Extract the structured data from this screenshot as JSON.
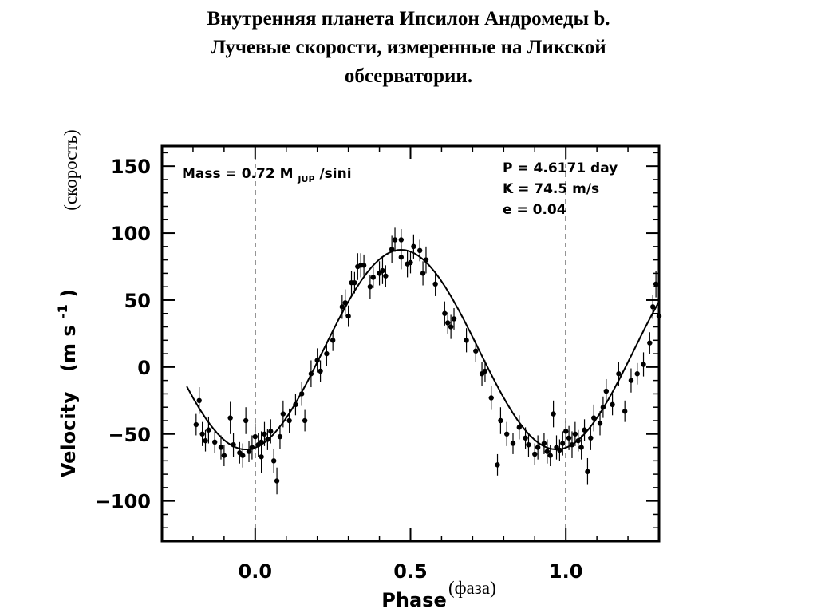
{
  "title": {
    "line1": "Внутренняя планета Ипсилон Андромеды b.",
    "line2": "Лучевые скорости, измеренные на Ликской",
    "line3": "обсерватории."
  },
  "ru_labels": {
    "ylabel": "(скорость)",
    "xlabel": "(фаза)"
  },
  "chart_data": {
    "type": "scatter",
    "xlabel": "Phase",
    "ylabel": "Velocity",
    "ylabel_units": "(m s",
    "ylabel_units_sup": "-1",
    "ylabel_units_close": ")",
    "xlim": [
      -0.3,
      1.3
    ],
    "ylim": [
      -130,
      165
    ],
    "x_ticks": [
      0.0,
      0.5,
      1.0
    ],
    "x_tick_labels": [
      "0.0",
      "0.5",
      "1.0"
    ],
    "y_ticks": [
      150,
      100,
      50,
      0,
      -50,
      -100
    ],
    "y_tick_labels": [
      "150",
      "100",
      "50",
      "0",
      "−50",
      "−100"
    ],
    "grid": false,
    "vertical_reference_lines": [
      0.0,
      1.0
    ],
    "annotations": {
      "mass": "Mass = 0.72 M",
      "mass_sub": "JUP",
      "mass_tail": " /sini",
      "period": "P = 4.6171 day",
      "amplitude": "K = 74.5 m/s",
      "eccentricity": "e = 0.04"
    },
    "fit": {
      "name": "",
      "K": 74.5,
      "offset": 13,
      "phase_of_max": 0.47,
      "x_start": -0.22,
      "x_end": 1.3
    },
    "points": [
      {
        "x": -0.19,
        "y": -43,
        "err": 8
      },
      {
        "x": -0.18,
        "y": -25,
        "err": 10
      },
      {
        "x": -0.17,
        "y": -50,
        "err": 9
      },
      {
        "x": -0.16,
        "y": -55,
        "err": 8
      },
      {
        "x": -0.15,
        "y": -47,
        "err": 10
      },
      {
        "x": -0.13,
        "y": -56,
        "err": 8
      },
      {
        "x": -0.11,
        "y": -60,
        "err": 9
      },
      {
        "x": -0.1,
        "y": -66,
        "err": 8
      },
      {
        "x": -0.08,
        "y": -38,
        "err": 12
      },
      {
        "x": -0.07,
        "y": -58,
        "err": 9
      },
      {
        "x": -0.05,
        "y": -64,
        "err": 8
      },
      {
        "x": -0.04,
        "y": -66,
        "err": 9
      },
      {
        "x": -0.03,
        "y": -40,
        "err": 10
      },
      {
        "x": -0.02,
        "y": -63,
        "err": 8
      },
      {
        "x": -0.01,
        "y": -60,
        "err": 9
      },
      {
        "x": 0.0,
        "y": -52,
        "err": 10
      },
      {
        "x": 0.01,
        "y": -58,
        "err": 9
      },
      {
        "x": 0.02,
        "y": -56,
        "err": 8
      },
      {
        "x": 0.02,
        "y": -67,
        "err": 12
      },
      {
        "x": 0.03,
        "y": -50,
        "err": 9
      },
      {
        "x": 0.04,
        "y": -54,
        "err": 8
      },
      {
        "x": 0.05,
        "y": -48,
        "err": 9
      },
      {
        "x": 0.06,
        "y": -70,
        "err": 9
      },
      {
        "x": 0.07,
        "y": -85,
        "err": 10
      },
      {
        "x": 0.08,
        "y": -52,
        "err": 9
      },
      {
        "x": 0.09,
        "y": -35,
        "err": 10
      },
      {
        "x": 0.11,
        "y": -40,
        "err": 9
      },
      {
        "x": 0.13,
        "y": -28,
        "err": 8
      },
      {
        "x": 0.15,
        "y": -20,
        "err": 9
      },
      {
        "x": 0.16,
        "y": -40,
        "err": 8
      },
      {
        "x": 0.18,
        "y": -5,
        "err": 10
      },
      {
        "x": 0.2,
        "y": 5,
        "err": 9
      },
      {
        "x": 0.21,
        "y": -3,
        "err": 8
      },
      {
        "x": 0.23,
        "y": 10,
        "err": 9
      },
      {
        "x": 0.25,
        "y": 20,
        "err": 8
      },
      {
        "x": 0.28,
        "y": 45,
        "err": 9
      },
      {
        "x": 0.29,
        "y": 48,
        "err": 10
      },
      {
        "x": 0.3,
        "y": 38,
        "err": 8
      },
      {
        "x": 0.31,
        "y": 63,
        "err": 9
      },
      {
        "x": 0.32,
        "y": 63,
        "err": 8
      },
      {
        "x": 0.33,
        "y": 75,
        "err": 10
      },
      {
        "x": 0.34,
        "y": 76,
        "err": 9
      },
      {
        "x": 0.35,
        "y": 76,
        "err": 8
      },
      {
        "x": 0.37,
        "y": 60,
        "err": 9
      },
      {
        "x": 0.38,
        "y": 67,
        "err": 8
      },
      {
        "x": 0.4,
        "y": 70,
        "err": 9
      },
      {
        "x": 0.41,
        "y": 72,
        "err": 10
      },
      {
        "x": 0.42,
        "y": 68,
        "err": 8
      },
      {
        "x": 0.44,
        "y": 88,
        "err": 10
      },
      {
        "x": 0.45,
        "y": 95,
        "err": 9
      },
      {
        "x": 0.47,
        "y": 95,
        "err": 8
      },
      {
        "x": 0.47,
        "y": 82,
        "err": 9
      },
      {
        "x": 0.49,
        "y": 77,
        "err": 10
      },
      {
        "x": 0.5,
        "y": 78,
        "err": 8
      },
      {
        "x": 0.51,
        "y": 90,
        "err": 9
      },
      {
        "x": 0.53,
        "y": 87,
        "err": 8
      },
      {
        "x": 0.54,
        "y": 70,
        "err": 9
      },
      {
        "x": 0.55,
        "y": 80,
        "err": 10
      },
      {
        "x": 0.58,
        "y": 62,
        "err": 9
      },
      {
        "x": 0.61,
        "y": 40,
        "err": 9
      },
      {
        "x": 0.62,
        "y": 33,
        "err": 8
      },
      {
        "x": 0.63,
        "y": 30,
        "err": 9
      },
      {
        "x": 0.64,
        "y": 36,
        "err": 8
      },
      {
        "x": 0.68,
        "y": 20,
        "err": 9
      },
      {
        "x": 0.71,
        "y": 12,
        "err": 8
      },
      {
        "x": 0.73,
        "y": -5,
        "err": 9
      },
      {
        "x": 0.74,
        "y": -3,
        "err": 8
      },
      {
        "x": 0.76,
        "y": -23,
        "err": 9
      },
      {
        "x": 0.78,
        "y": -73,
        "err": 8
      },
      {
        "x": 0.79,
        "y": -40,
        "err": 10
      },
      {
        "x": 0.81,
        "y": -50,
        "err": 9
      },
      {
        "x": 0.83,
        "y": -57,
        "err": 8
      },
      {
        "x": 0.85,
        "y": -45,
        "err": 9
      },
      {
        "x": 0.87,
        "y": -53,
        "err": 8
      },
      {
        "x": 0.88,
        "y": -58,
        "err": 9
      },
      {
        "x": 0.9,
        "y": -65,
        "err": 8
      },
      {
        "x": 0.91,
        "y": -60,
        "err": 9
      },
      {
        "x": 0.93,
        "y": -57,
        "err": 8
      },
      {
        "x": 0.94,
        "y": -63,
        "err": 9
      },
      {
        "x": 0.95,
        "y": -66,
        "err": 8
      },
      {
        "x": 0.96,
        "y": -35,
        "err": 10
      },
      {
        "x": 0.97,
        "y": -60,
        "err": 9
      },
      {
        "x": 0.98,
        "y": -62,
        "err": 8
      },
      {
        "x": 0.99,
        "y": -57,
        "err": 9
      },
      {
        "x": 1.0,
        "y": -48,
        "err": 8
      },
      {
        "x": 1.01,
        "y": -53,
        "err": 9
      },
      {
        "x": 1.02,
        "y": -58,
        "err": 10
      },
      {
        "x": 1.03,
        "y": -50,
        "err": 9
      },
      {
        "x": 1.04,
        "y": -55,
        "err": 8
      },
      {
        "x": 1.05,
        "y": -60,
        "err": 9
      },
      {
        "x": 1.06,
        "y": -47,
        "err": 8
      },
      {
        "x": 1.07,
        "y": -78,
        "err": 10
      },
      {
        "x": 1.08,
        "y": -53,
        "err": 9
      },
      {
        "x": 1.09,
        "y": -38,
        "err": 10
      },
      {
        "x": 1.11,
        "y": -42,
        "err": 9
      },
      {
        "x": 1.12,
        "y": -30,
        "err": 8
      },
      {
        "x": 1.13,
        "y": -18,
        "err": 9
      },
      {
        "x": 1.15,
        "y": -28,
        "err": 8
      },
      {
        "x": 1.17,
        "y": -5,
        "err": 9
      },
      {
        "x": 1.19,
        "y": -33,
        "err": 8
      },
      {
        "x": 1.21,
        "y": -10,
        "err": 9
      },
      {
        "x": 1.23,
        "y": -5,
        "err": 8
      },
      {
        "x": 1.25,
        "y": 2,
        "err": 9
      },
      {
        "x": 1.27,
        "y": 18,
        "err": 8
      },
      {
        "x": 1.28,
        "y": 45,
        "err": 9
      },
      {
        "x": 1.29,
        "y": 62,
        "err": 10
      },
      {
        "x": 1.3,
        "y": 38,
        "err": 9
      }
    ]
  }
}
